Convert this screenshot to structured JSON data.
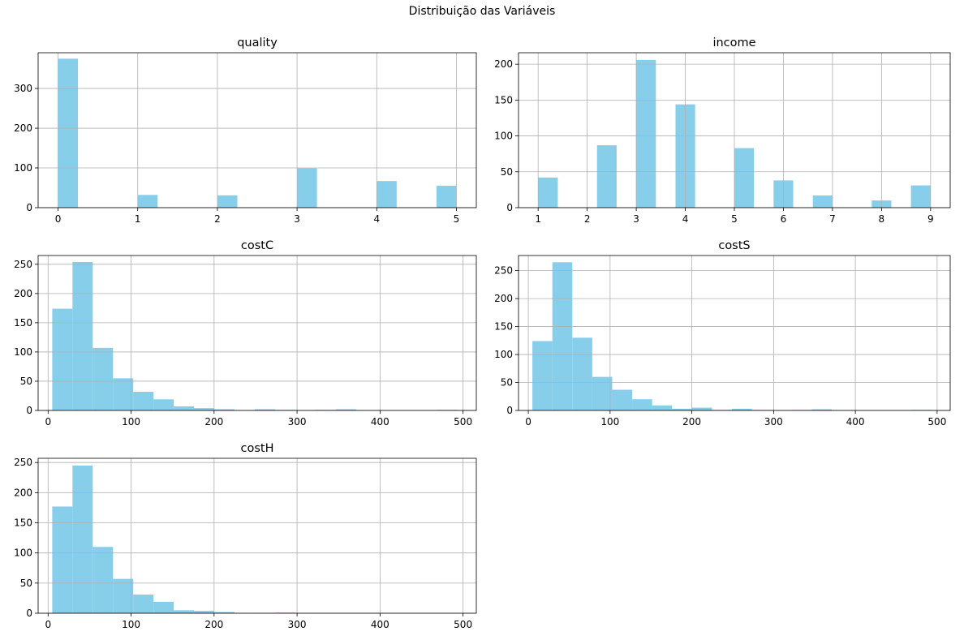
{
  "figure": {
    "title": "Distribuição das Variáveis",
    "bar_color": "#87ceeb",
    "grid_color": "#b0b0b0"
  },
  "chart_data": [
    {
      "type": "bar",
      "title": "quality",
      "grid": true,
      "xlim": [
        -0.25,
        5.25
      ],
      "ylim": [
        0,
        390
      ],
      "xticks": [
        0,
        1,
        2,
        3,
        4,
        5
      ],
      "yticks": [
        0,
        100,
        200,
        300
      ],
      "bin_width": 0.25,
      "bin_left_edges": [
        0,
        1,
        2,
        3,
        4,
        4.75
      ],
      "values": [
        375,
        32,
        31,
        99,
        67,
        55
      ]
    },
    {
      "type": "bar",
      "title": "income",
      "grid": true,
      "xlim": [
        0.6,
        9.4
      ],
      "ylim": [
        0,
        216
      ],
      "xticks": [
        1,
        2,
        3,
        4,
        5,
        6,
        7,
        8,
        9
      ],
      "yticks": [
        0,
        50,
        100,
        150,
        200
      ],
      "bin_width": 0.4,
      "bin_left_edges": [
        1,
        2.2,
        3,
        3.8,
        5,
        5.8,
        6.6,
        7.8,
        8.6
      ],
      "values": [
        42,
        87,
        206,
        144,
        83,
        38,
        17,
        10,
        31
      ]
    },
    {
      "type": "bar",
      "title": "costC",
      "grid": true,
      "xlim": [
        -12,
        516
      ],
      "ylim": [
        0,
        265
      ],
      "xticks": [
        0,
        100,
        200,
        300,
        400,
        500
      ],
      "yticks": [
        0,
        50,
        100,
        150,
        200,
        250
      ],
      "bin_width": 24.4,
      "bin_start": 5,
      "values": [
        174,
        254,
        107,
        55,
        32,
        19,
        7,
        4,
        2,
        0,
        2,
        1,
        0,
        1,
        2,
        0,
        0,
        0,
        0,
        1
      ]
    },
    {
      "type": "bar",
      "title": "costS",
      "grid": true,
      "xlim": [
        -12,
        516
      ],
      "ylim": [
        0,
        277
      ],
      "xticks": [
        0,
        100,
        200,
        300,
        400,
        500
      ],
      "yticks": [
        0,
        50,
        100,
        150,
        200,
        250
      ],
      "bin_width": 24.4,
      "bin_start": 5,
      "values": [
        124,
        265,
        130,
        60,
        37,
        20,
        9,
        3,
        5,
        1,
        3,
        1,
        0,
        1,
        2,
        0,
        0,
        0,
        0,
        1
      ]
    },
    {
      "type": "bar",
      "title": "costH",
      "grid": true,
      "xlim": [
        -12,
        516
      ],
      "ylim": [
        0,
        257
      ],
      "xticks": [
        0,
        100,
        200,
        300,
        400,
        500
      ],
      "yticks": [
        0,
        50,
        100,
        150,
        200,
        250
      ],
      "bin_width": 24.4,
      "bin_start": 5,
      "values": [
        177,
        245,
        110,
        57,
        31,
        19,
        5,
        4,
        2,
        0,
        0,
        1,
        0,
        0,
        0,
        0,
        0,
        0,
        0,
        0
      ]
    }
  ]
}
